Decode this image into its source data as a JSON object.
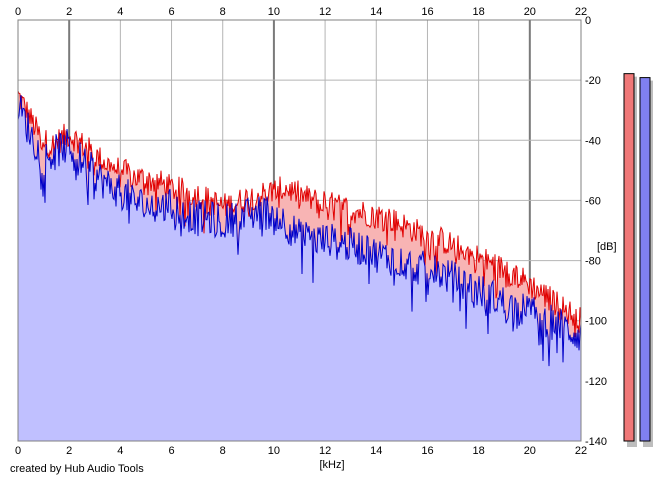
{
  "credit": "created by Hub Audio Tools",
  "colors": {
    "background": "#ffffff",
    "grid": "#b4b4b4",
    "grid_major": "#7a7a7a",
    "fill_blue": "#c0c0ff",
    "fill_red": "#f8b4b4",
    "line_red": "#e00000",
    "line_blue": "#0000c8",
    "meter_red": "#f07878",
    "meter_blue": "#8080f0",
    "meter_shadow": "#bdbdbd"
  },
  "chart_data": {
    "type": "area",
    "xlabel": "[kHz]",
    "ylabel": "[dB]",
    "xlim": [
      0,
      22
    ],
    "ylim": [
      -140,
      0
    ],
    "x_ticks": [
      "0",
      "2",
      "4",
      "6",
      "8",
      "10",
      "12",
      "14",
      "16",
      "18",
      "20",
      "22"
    ],
    "y_ticks": [
      "0",
      "-20",
      "-40",
      "-60",
      "-80",
      "-100",
      "-120",
      "-140"
    ],
    "grid": true,
    "x_major_gridlines": [
      2,
      10,
      20
    ],
    "series": [
      {
        "color": "red",
        "x": [
          0,
          0.2,
          0.5,
          0.8,
          1.0,
          1.3,
          1.6,
          2.0,
          2.3,
          2.6,
          3.0,
          3.5,
          4.0,
          4.5,
          5.0,
          5.5,
          6.0,
          6.5,
          7.0,
          7.5,
          8.0,
          8.5,
          9.0,
          9.5,
          10.0,
          10.5,
          11.0,
          11.5,
          12.0,
          12.5,
          13.0,
          13.5,
          14.0,
          14.5,
          15.0,
          15.5,
          16.0,
          16.5,
          17.0,
          17.5,
          18.0,
          18.5,
          19.0,
          19.5,
          20.0,
          20.5,
          21.0,
          21.5,
          22.0
        ],
        "values": [
          -25,
          -28,
          -33,
          -38,
          -40,
          -42,
          -40,
          -38,
          -40,
          -42,
          -45,
          -48,
          -50,
          -52,
          -53,
          -54,
          -56,
          -57,
          -58,
          -60,
          -62,
          -61,
          -59,
          -58,
          -57,
          -56,
          -58,
          -60,
          -61,
          -62,
          -63,
          -64,
          -65,
          -66,
          -68,
          -70,
          -72,
          -73,
          -75,
          -77,
          -79,
          -81,
          -83,
          -85,
          -88,
          -91,
          -94,
          -97,
          -100
        ]
      },
      {
        "color": "blue",
        "x": [
          0,
          0.2,
          0.5,
          0.8,
          1.0,
          1.3,
          1.6,
          2.0,
          2.3,
          2.6,
          3.0,
          3.5,
          4.0,
          4.5,
          5.0,
          5.5,
          6.0,
          6.5,
          7.0,
          7.5,
          8.0,
          8.5,
          9.0,
          9.5,
          10.0,
          10.5,
          11.0,
          11.5,
          12.0,
          12.5,
          13.0,
          13.5,
          14.0,
          14.5,
          15.0,
          15.5,
          16.0,
          16.5,
          17.0,
          17.5,
          18.0,
          18.5,
          19.0,
          19.5,
          20.0,
          20.5,
          21.0,
          21.5,
          22.0
        ],
        "values": [
          -28,
          -32,
          -38,
          -43,
          -46,
          -45,
          -43,
          -42,
          -45,
          -48,
          -51,
          -55,
          -57,
          -60,
          -62,
          -62,
          -62,
          -64,
          -66,
          -66,
          -67,
          -66,
          -65,
          -64,
          -64,
          -68,
          -72,
          -73,
          -73,
          -74,
          -75,
          -76,
          -78,
          -79,
          -80,
          -82,
          -83,
          -84,
          -86,
          -88,
          -90,
          -92,
          -94,
          -96,
          -97,
          -99,
          -101,
          -103,
          -105
        ]
      }
    ],
    "meters": [
      {
        "color": "red",
        "level": 0.93
      },
      {
        "color": "blue",
        "level": 0.92
      }
    ]
  }
}
